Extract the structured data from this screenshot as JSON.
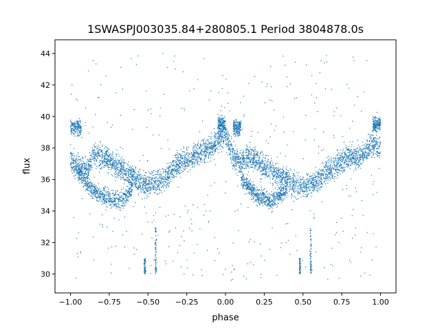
{
  "chart_data": {
    "type": "scatter",
    "title": "1SWASPJ003035.84+280805.1 Period 3804878.0s",
    "xlabel": "phase",
    "ylabel": "flux",
    "xlim": [
      -1.1,
      1.1
    ],
    "ylim": [
      28.8,
      44.87
    ],
    "xticks": [
      -1.0,
      -0.75,
      -0.5,
      -0.25,
      0.0,
      0.25,
      0.5,
      0.75,
      1.0
    ],
    "xtick_labels": [
      "−1.00",
      "−0.75",
      "−0.50",
      "−0.25",
      "0.00",
      "0.25",
      "0.50",
      "0.75",
      "1.00"
    ],
    "yticks": [
      30,
      32,
      34,
      36,
      38,
      40,
      42,
      44
    ],
    "ytick_labels": [
      "30",
      "32",
      "34",
      "36",
      "38",
      "40",
      "42",
      "44"
    ],
    "grid": false,
    "color": "#1f77b4",
    "main_branch": {
      "phase": [
        -1.0,
        -0.95,
        -0.9,
        -0.85,
        -0.8,
        -0.75,
        -0.7,
        -0.65,
        -0.6,
        -0.55,
        -0.5,
        -0.45,
        -0.4,
        -0.35,
        -0.3,
        -0.25,
        -0.2,
        -0.15,
        -0.1,
        -0.05,
        0.0,
        0.05,
        0.1,
        0.15,
        0.2,
        0.25,
        0.3,
        0.35,
        0.4,
        0.45,
        0.5,
        0.55,
        0.6,
        0.65,
        0.7,
        0.75,
        0.8,
        0.85,
        0.9,
        0.95,
        1.0
      ],
      "flux": [
        37.2,
        36.8,
        36.5,
        37.5,
        37.5,
        37.2,
        36.8,
        36.5,
        36.2,
        35.8,
        35.6,
        35.8,
        36.0,
        36.5,
        37.0,
        37.3,
        37.5,
        37.8,
        38.0,
        38.5,
        38.8,
        37.5,
        37.0,
        37.5,
        37.2,
        36.8,
        36.5,
        36.3,
        36.0,
        35.6,
        35.5,
        35.8,
        36.0,
        36.5,
        36.8,
        37.2,
        37.5,
        37.3,
        37.8,
        38.2,
        38.0
      ]
    },
    "lower_branch": {
      "phase": [
        -0.95,
        -0.9,
        -0.85,
        -0.8,
        -0.75,
        -0.7,
        -0.65,
        -0.6,
        0.1,
        0.15,
        0.2,
        0.25,
        0.3,
        0.35,
        0.4
      ],
      "flux": [
        36.5,
        35.8,
        35.3,
        35.0,
        34.8,
        34.6,
        34.8,
        35.5,
        36.0,
        35.5,
        35.0,
        34.8,
        34.6,
        35.0,
        35.5
      ]
    },
    "high_clusters": [
      {
        "phase_range": [
          -1.0,
          -0.93
        ],
        "flux": 39.3
      },
      {
        "phase_range": [
          0.05,
          0.1
        ],
        "flux": 39.3
      },
      {
        "phase_range": [
          -0.05,
          0.0
        ],
        "flux": 39.5
      },
      {
        "phase_range": [
          0.95,
          1.0
        ],
        "flux": 39.5
      }
    ],
    "low_streaks": [
      {
        "phase": -0.45,
        "flux_range": [
          30.0,
          33.0
        ]
      },
      {
        "phase": 0.55,
        "flux_range": [
          30.0,
          33.0
        ]
      },
      {
        "phase": -0.52,
        "flux_range": [
          30.0,
          31.0
        ]
      },
      {
        "phase": 0.48,
        "flux_range": [
          30.0,
          31.0
        ]
      }
    ],
    "outlier_flux_range": [
      29.5,
      44.0
    ]
  }
}
